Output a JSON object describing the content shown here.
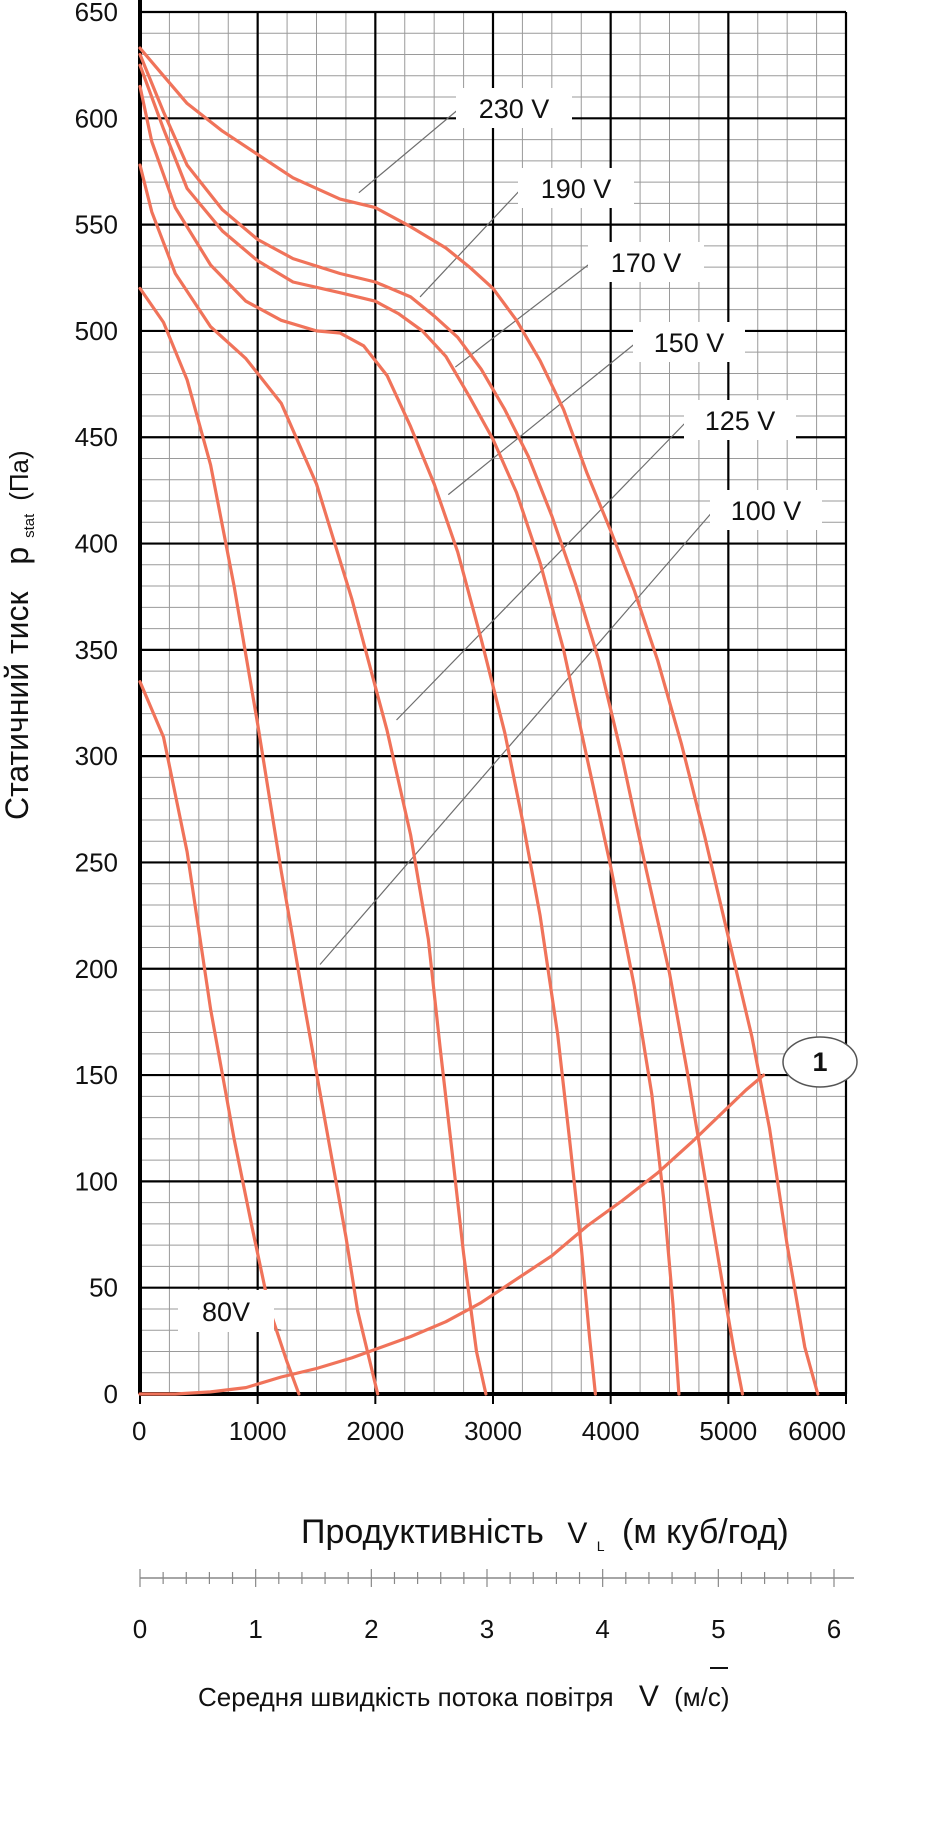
{
  "chart_data": {
    "type": "line",
    "xlabel": "Продуктивність",
    "xlabel_symbol": "V",
    "xlabel_symbol_sub": "L",
    "xlabel_unit": "(м куб/год)",
    "ylabel": "Статичний тиск",
    "ylabel_symbol": "p",
    "ylabel_symbol_sub": "stat",
    "ylabel_unit": "(Па)",
    "xlim": [
      0,
      6000
    ],
    "ylim": [
      0,
      650
    ],
    "x_ticks": [
      "0",
      "1000",
      "2000",
      "3000",
      "4000",
      "5000",
      "6000"
    ],
    "y_ticks": [
      "0",
      "50",
      "100",
      "150",
      "200",
      "250",
      "300",
      "350",
      "400",
      "450",
      "500",
      "550",
      "600",
      "650"
    ],
    "secondary_axis": {
      "label": "Середня швидкість потока повітря",
      "symbol": "V",
      "unit": "(м/с)",
      "ticks": [
        "0",
        "1",
        "2",
        "3",
        "4",
        "5",
        "6"
      ],
      "range": [
        0,
        6
      ]
    },
    "grid": true,
    "series": [
      {
        "name": "230 V",
        "values": [
          [
            0,
            633
          ],
          [
            200,
            620
          ],
          [
            400,
            607
          ],
          [
            700,
            594
          ],
          [
            1000,
            583
          ],
          [
            1300,
            572
          ],
          [
            1700,
            562
          ],
          [
            2000,
            558
          ],
          [
            2300,
            549
          ],
          [
            2600,
            539
          ],
          [
            2800,
            530
          ],
          [
            3000,
            520
          ],
          [
            3200,
            505
          ],
          [
            3400,
            486
          ],
          [
            3600,
            463
          ],
          [
            3800,
            433
          ],
          [
            4000,
            406
          ],
          [
            4200,
            378
          ],
          [
            4400,
            345
          ],
          [
            4600,
            306
          ],
          [
            4800,
            262
          ],
          [
            5000,
            215
          ],
          [
            5200,
            168
          ],
          [
            5350,
            125
          ],
          [
            5500,
            70
          ],
          [
            5650,
            22
          ],
          [
            5760,
            0
          ]
        ]
      },
      {
        "name": "190 V",
        "values": [
          [
            0,
            630
          ],
          [
            200,
            603
          ],
          [
            400,
            578
          ],
          [
            700,
            557
          ],
          [
            1000,
            543
          ],
          [
            1300,
            534
          ],
          [
            1700,
            527
          ],
          [
            2000,
            523
          ],
          [
            2300,
            516
          ],
          [
            2500,
            507
          ],
          [
            2700,
            497
          ],
          [
            2900,
            482
          ],
          [
            3100,
            463
          ],
          [
            3300,
            441
          ],
          [
            3500,
            413
          ],
          [
            3700,
            381
          ],
          [
            3900,
            345
          ],
          [
            4100,
            299
          ],
          [
            4300,
            247
          ],
          [
            4500,
            198
          ],
          [
            4650,
            152
          ],
          [
            4800,
            102
          ],
          [
            4950,
            52
          ],
          [
            5050,
            20
          ],
          [
            5120,
            0
          ]
        ]
      },
      {
        "name": "170 V",
        "values": [
          [
            0,
            625
          ],
          [
            200,
            595
          ],
          [
            400,
            567
          ],
          [
            700,
            547
          ],
          [
            1000,
            533
          ],
          [
            1300,
            523
          ],
          [
            1700,
            518
          ],
          [
            2000,
            514
          ],
          [
            2200,
            508
          ],
          [
            2400,
            500
          ],
          [
            2600,
            488
          ],
          [
            2800,
            469
          ],
          [
            3000,
            449
          ],
          [
            3200,
            424
          ],
          [
            3400,
            391
          ],
          [
            3600,
            350
          ],
          [
            3800,
            299
          ],
          [
            4000,
            248
          ],
          [
            4200,
            192
          ],
          [
            4350,
            141
          ],
          [
            4450,
            92
          ],
          [
            4530,
            42
          ],
          [
            4580,
            0
          ]
        ]
      },
      {
        "name": "150 V",
        "values": [
          [
            0,
            615
          ],
          [
            100,
            589
          ],
          [
            300,
            558
          ],
          [
            600,
            531
          ],
          [
            900,
            514
          ],
          [
            1200,
            505
          ],
          [
            1500,
            500
          ],
          [
            1700,
            499
          ],
          [
            1900,
            493
          ],
          [
            2100,
            479
          ],
          [
            2300,
            455
          ],
          [
            2500,
            428
          ],
          [
            2700,
            396
          ],
          [
            2900,
            355
          ],
          [
            3100,
            311
          ],
          [
            3250,
            270
          ],
          [
            3400,
            225
          ],
          [
            3550,
            169
          ],
          [
            3650,
            120
          ],
          [
            3750,
            69
          ],
          [
            3820,
            27
          ],
          [
            3870,
            0
          ]
        ]
      },
      {
        "name": "125 V",
        "values": [
          [
            0,
            578
          ],
          [
            100,
            556
          ],
          [
            300,
            527
          ],
          [
            600,
            502
          ],
          [
            900,
            487
          ],
          [
            1200,
            466
          ],
          [
            1500,
            428
          ],
          [
            1800,
            374
          ],
          [
            2100,
            312
          ],
          [
            2300,
            263
          ],
          [
            2450,
            214
          ],
          [
            2550,
            163
          ],
          [
            2650,
            115
          ],
          [
            2750,
            66
          ],
          [
            2860,
            20
          ],
          [
            2940,
            0
          ]
        ]
      },
      {
        "name": "100 V",
        "values": [
          [
            0,
            520
          ],
          [
            200,
            504
          ],
          [
            400,
            477
          ],
          [
            600,
            437
          ],
          [
            800,
            380
          ],
          [
            1000,
            315
          ],
          [
            1200,
            246
          ],
          [
            1400,
            182
          ],
          [
            1600,
            120
          ],
          [
            1750,
            74
          ],
          [
            1850,
            39
          ],
          [
            1950,
            16
          ],
          [
            2020,
            0
          ]
        ]
      },
      {
        "name": "80V",
        "values": [
          [
            0,
            335
          ],
          [
            200,
            309
          ],
          [
            400,
            255
          ],
          [
            600,
            181
          ],
          [
            800,
            120
          ],
          [
            950,
            79
          ],
          [
            1100,
            40
          ],
          [
            1250,
            15
          ],
          [
            1350,
            0
          ]
        ]
      },
      {
        "name": "1",
        "values": [
          [
            0,
            0
          ],
          [
            300,
            0
          ],
          [
            600,
            1
          ],
          [
            900,
            3
          ],
          [
            1200,
            8
          ],
          [
            1500,
            12
          ],
          [
            1800,
            17
          ],
          [
            2000,
            21
          ],
          [
            2300,
            27
          ],
          [
            2600,
            34
          ],
          [
            2900,
            43
          ],
          [
            3200,
            54
          ],
          [
            3500,
            65
          ],
          [
            3800,
            79
          ],
          [
            4100,
            91
          ],
          [
            4400,
            104
          ],
          [
            4700,
            119
          ],
          [
            5000,
            135
          ],
          [
            5150,
            143
          ],
          [
            5300,
            150
          ]
        ]
      }
    ],
    "label_anchors": [
      [
        1860,
        565
      ],
      [
        2380,
        516
      ],
      [
        2680,
        483
      ],
      [
        2620,
        423
      ],
      [
        2180,
        317
      ],
      [
        1530,
        202
      ],
      [
        1200,
        30
      ]
    ]
  },
  "colors": {
    "curve": "#f0735a",
    "grid_major": "#000000",
    "grid_minor": "#9a9a9a",
    "leader": "#6e6e6e"
  }
}
